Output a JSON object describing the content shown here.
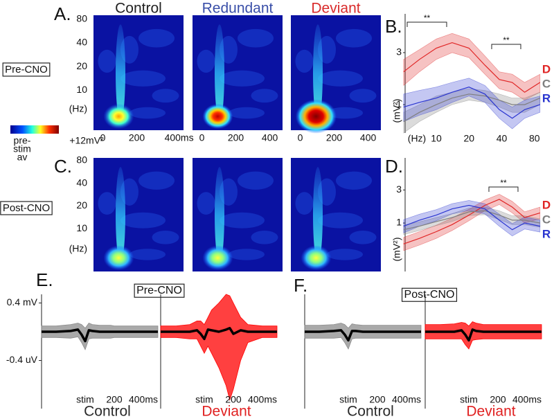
{
  "panel_a": {
    "label": "A.",
    "row_label": "Pre-CNO",
    "titles": [
      "Control",
      "Redundant",
      "Deviant"
    ],
    "title_colors": [
      "#222222",
      "#3a4fa8",
      "#d92b2b"
    ],
    "ylabel": "(Hz)",
    "yscale": "log",
    "ylim": [
      3.1,
      90
    ],
    "yticks": [
      10,
      20,
      40,
      80
    ],
    "xlim": [
      -55,
      475
    ],
    "xticks": [
      [
        0,
        200,
        {
          "value": 400,
          "label": "400ms"
        }
      ],
      [
        0,
        200,
        400
      ],
      [
        0,
        200,
        400
      ]
    ]
  },
  "colorbar": {
    "min_label": [
      "pre-",
      "stim",
      "av"
    ],
    "max_label": "+12mV²"
  },
  "panel_c": {
    "label": "C.",
    "row_label": "Post-CNO",
    "ylabel": "(Hz)",
    "yscale": "log",
    "ylim": [
      2.7,
      87
    ],
    "yticks": [
      10,
      20,
      40,
      80
    ]
  },
  "panel_b": {
    "type": "line",
    "label": "B.",
    "xlabel": "(Hz)",
    "ylabel": "(mV²)",
    "xscale": "log",
    "yscale": "log",
    "xlim": [
      5.4,
      93
    ],
    "ylim": [
      0.55,
      6.8
    ],
    "xticks": [
      10,
      20,
      40,
      80
    ],
    "yticks": [
      1,
      3
    ],
    "annotations": [
      "**",
      "**"
    ],
    "x": [
      5,
      7,
      10,
      14,
      20,
      28,
      38,
      50,
      65,
      90
    ],
    "series": [
      {
        "name": "D",
        "color": "#e02525",
        "values": [
          2.0,
          2.6,
          3.3,
          3.7,
          3.3,
          2.3,
          1.7,
          1.6,
          1.3,
          1.6
        ],
        "lower": [
          1.5,
          2.0,
          2.6,
          3.0,
          2.7,
          1.9,
          1.4,
          1.3,
          1.1,
          1.3
        ],
        "upper": [
          2.6,
          3.2,
          4.0,
          4.5,
          4.0,
          2.8,
          2.0,
          1.9,
          1.6,
          1.9
        ]
      },
      {
        "name": "C",
        "color": "#7f7f7f",
        "values": [
          0.7,
          0.85,
          1.0,
          1.15,
          1.25,
          1.2,
          1.1,
          1.0,
          1.0,
          1.15
        ],
        "lower": [
          0.55,
          0.7,
          0.85,
          1.0,
          1.1,
          1.05,
          0.95,
          0.85,
          0.85,
          1.0
        ],
        "upper": [
          0.85,
          1.0,
          1.2,
          1.3,
          1.4,
          1.35,
          1.25,
          1.15,
          1.15,
          1.3
        ]
      },
      {
        "name": "R",
        "color": "#2a35d0",
        "values": [
          0.95,
          1.05,
          1.15,
          1.3,
          1.45,
          1.25,
          0.9,
          0.75,
          0.9,
          1.0
        ],
        "lower": [
          0.7,
          0.8,
          0.9,
          1.05,
          1.2,
          1.05,
          0.75,
          0.6,
          0.75,
          0.85
        ],
        "upper": [
          1.25,
          1.35,
          1.45,
          1.6,
          1.75,
          1.5,
          1.1,
          0.95,
          1.1,
          1.2
        ]
      }
    ]
  },
  "panel_d": {
    "type": "line",
    "label": "D.",
    "ylabel": "(mV²)",
    "xscale": "log",
    "yscale": "log",
    "xlim": [
      5.4,
      93
    ],
    "ylim": [
      0.2,
      8.7
    ],
    "yticks": [
      1,
      3
    ],
    "annotations": [
      "**"
    ],
    "x": [
      5,
      7,
      10,
      14,
      20,
      28,
      38,
      50,
      65,
      90
    ],
    "series": [
      {
        "name": "D",
        "color": "#e02525",
        "values": [
          0.5,
          0.6,
          0.75,
          0.95,
          1.3,
          1.8,
          2.2,
          1.7,
          1.2,
          1.4
        ],
        "lower": [
          0.4,
          0.48,
          0.6,
          0.78,
          1.08,
          1.5,
          1.85,
          1.4,
          1.0,
          1.15
        ],
        "upper": [
          0.62,
          0.75,
          0.93,
          1.18,
          1.58,
          2.15,
          2.6,
          2.05,
          1.45,
          1.7
        ]
      },
      {
        "name": "C",
        "color": "#7f7f7f",
        "values": [
          0.8,
          0.9,
          1.05,
          1.2,
          1.45,
          1.5,
          1.3,
          1.1,
          1.1,
          1.0
        ],
        "lower": [
          0.68,
          0.78,
          0.92,
          1.05,
          1.28,
          1.32,
          1.12,
          0.95,
          0.95,
          0.87
        ],
        "upper": [
          0.93,
          1.04,
          1.2,
          1.37,
          1.65,
          1.7,
          1.5,
          1.27,
          1.27,
          1.15
        ]
      },
      {
        "name": "R",
        "color": "#2a35d0",
        "values": [
          0.9,
          1.1,
          1.3,
          1.6,
          1.8,
          1.6,
          1.1,
          0.8,
          1.0,
          0.9
        ],
        "lower": [
          0.72,
          0.9,
          1.08,
          1.35,
          1.52,
          1.35,
          0.9,
          0.65,
          0.82,
          0.74
        ],
        "upper": [
          1.12,
          1.34,
          1.56,
          1.9,
          2.12,
          1.9,
          1.34,
          0.98,
          1.22,
          1.1
        ]
      }
    ]
  },
  "panel_e": {
    "type": "line",
    "label": "E.",
    "title": "Pre-CNO",
    "mean_color": "#000000",
    "xlim": [
      -300,
      500
    ],
    "ylim": [
      -1.05,
      0.52
    ],
    "yticks": [
      {
        "value": 0.4,
        "label": "0.4 mV"
      },
      {
        "value": -0.4,
        "label": "-0.4 uV"
      }
    ],
    "xticks": [
      {
        "value": 0,
        "label": "stim"
      },
      200,
      {
        "value": 400,
        "label": "400ms"
      }
    ],
    "x": [
      -300,
      -200,
      -100,
      -50,
      -25,
      0,
      25,
      50,
      100,
      150,
      175,
      200,
      250,
      300,
      400,
      500
    ],
    "series": [
      {
        "name": "Control",
        "color": "#8c8c8c",
        "title_color": "#2a2a2a",
        "values": [
          0,
          0,
          0.01,
          0.03,
          -0.04,
          -0.13,
          0.02,
          0.01,
          0,
          0,
          0,
          0,
          0,
          0,
          0,
          0
        ],
        "lower": [
          -0.08,
          -0.08,
          -0.09,
          -0.07,
          -0.15,
          -0.25,
          -0.1,
          -0.09,
          -0.09,
          -0.09,
          -0.09,
          -0.08,
          -0.08,
          -0.08,
          -0.08,
          -0.08
        ],
        "upper": [
          0.08,
          0.08,
          0.1,
          0.12,
          0.1,
          0.05,
          0.12,
          0.1,
          0.09,
          0.09,
          0.09,
          0.08,
          0.08,
          0.08,
          0.08,
          0.08
        ]
      },
      {
        "name": "Deviant",
        "color": "#ff0000",
        "title_color": "#e02020",
        "values": [
          0,
          0,
          0,
          0.02,
          -0.03,
          -0.1,
          0.03,
          0.02,
          0,
          0.03,
          0.05,
          -0.03,
          0.02,
          0,
          0,
          0
        ],
        "lower": [
          -0.08,
          -0.08,
          -0.1,
          -0.1,
          -0.2,
          -0.3,
          -0.2,
          -0.3,
          -0.5,
          -0.75,
          -0.95,
          -0.8,
          -0.4,
          -0.15,
          -0.08,
          -0.08
        ],
        "upper": [
          0.08,
          0.08,
          0.1,
          0.15,
          0.15,
          0.1,
          0.2,
          0.3,
          0.4,
          0.52,
          0.5,
          0.4,
          0.2,
          0.1,
          0.08,
          0.08
        ]
      }
    ]
  },
  "panel_f": {
    "type": "line",
    "label": "F.",
    "title": "Post-CNO",
    "mean_color": "#000000",
    "xlim": [
      -300,
      500
    ],
    "ylim": [
      -1.05,
      0.52
    ],
    "xticks": [
      {
        "value": 0,
        "label": "stim"
      },
      200,
      {
        "value": 400,
        "label": "400ms"
      }
    ],
    "x": [
      -300,
      -200,
      -100,
      -50,
      -25,
      0,
      25,
      50,
      100,
      150,
      175,
      200,
      250,
      300,
      400,
      500
    ],
    "series": [
      {
        "name": "Control",
        "color": "#8c8c8c",
        "title_color": "#2a2a2a",
        "values": [
          0,
          0,
          0.01,
          0.02,
          -0.04,
          -0.12,
          0.01,
          0.01,
          0,
          0,
          0,
          0,
          0,
          0,
          0,
          0
        ],
        "lower": [
          -0.09,
          -0.09,
          -0.09,
          -0.08,
          -0.15,
          -0.24,
          -0.1,
          -0.09,
          -0.09,
          -0.09,
          -0.09,
          -0.09,
          -0.09,
          -0.09,
          -0.09,
          -0.09
        ],
        "upper": [
          0.09,
          0.09,
          0.1,
          0.12,
          0.1,
          0.05,
          0.11,
          0.1,
          0.09,
          0.09,
          0.09,
          0.09,
          0.09,
          0.09,
          0.09,
          0.09
        ]
      },
      {
        "name": "Deviant",
        "color": "#ff0000",
        "title_color": "#e02020",
        "values": [
          0,
          0,
          0,
          0.02,
          -0.04,
          -0.12,
          0.03,
          0.01,
          0,
          0,
          0,
          0,
          0,
          0,
          0,
          0
        ],
        "lower": [
          -0.1,
          -0.1,
          -0.1,
          -0.1,
          -0.18,
          -0.24,
          -0.12,
          -0.11,
          -0.1,
          -0.1,
          -0.1,
          -0.1,
          -0.1,
          -0.1,
          -0.1,
          -0.1
        ],
        "upper": [
          0.1,
          0.1,
          0.11,
          0.13,
          0.12,
          0.08,
          0.14,
          0.12,
          0.1,
          0.1,
          0.1,
          0.1,
          0.1,
          0.1,
          0.1,
          0.1
        ]
      }
    ]
  }
}
